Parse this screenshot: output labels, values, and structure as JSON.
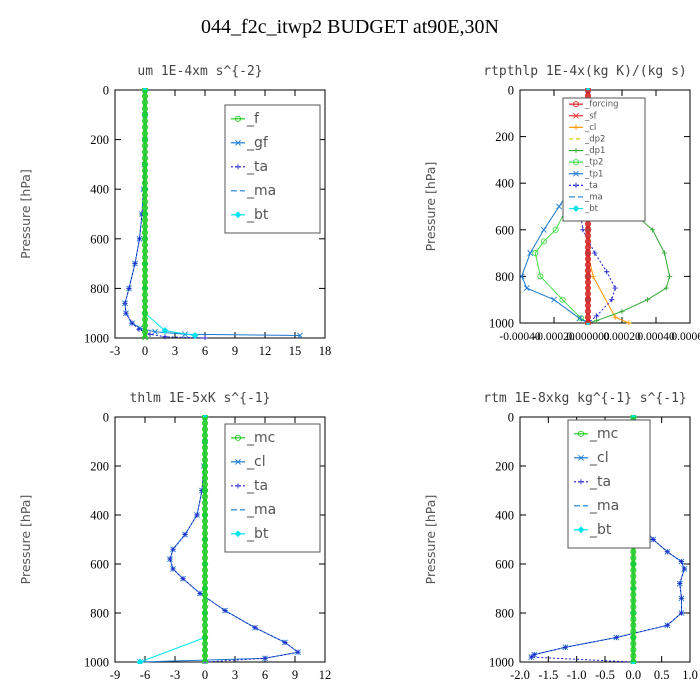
{
  "title": "044_f2c_itwp2  BUDGET at90E,30N",
  "chart_data": [
    {
      "type": "line",
      "title": "um  1E-4xm s^{-2}",
      "ylabel": "Pressure [hPa]",
      "ylim": [
        1000,
        0
      ],
      "yticks": [
        0,
        200,
        400,
        600,
        800,
        1000
      ],
      "xlim": [
        -3,
        18
      ],
      "xticks": [
        -3,
        0,
        3,
        6,
        9,
        12,
        15,
        18
      ],
      "xtick_labels": [
        "-3",
        "0",
        "3",
        "6",
        "9",
        "12",
        "15",
        "18"
      ],
      "legend_position": "top-right",
      "series": [
        {
          "name": "_f",
          "color": "#22cc22",
          "marker": "circle",
          "dash": "",
          "x": [
            0,
            0,
            0,
            0,
            0,
            0,
            0,
            0,
            0,
            0,
            0
          ],
          "y": [
            0,
            100,
            200,
            300,
            400,
            500,
            600,
            700,
            800,
            900,
            1000
          ]
        },
        {
          "name": "_gf",
          "color": "#1a7ad0",
          "marker": "x",
          "dash": "",
          "x": [
            0,
            0,
            0,
            -0.05,
            -0.15,
            -0.3,
            -0.55,
            -1.0,
            -1.6,
            -2.0,
            -1.9,
            -1.3,
            -0.5,
            1.0,
            4.0,
            15.5
          ],
          "y": [
            0,
            100,
            200,
            300,
            400,
            500,
            600,
            700,
            800,
            860,
            900,
            940,
            960,
            975,
            985,
            990
          ]
        },
        {
          "name": "_ta",
          "color": "#2222cc",
          "marker": "plus",
          "dash": "2,2",
          "x": [
            0,
            0,
            0,
            -0.05,
            -0.15,
            -0.3,
            -0.55,
            -1.0,
            -1.6,
            -2.0,
            -1.9,
            -1.3,
            -0.6,
            0.5,
            2.0,
            6.0
          ],
          "y": [
            0,
            100,
            200,
            300,
            400,
            500,
            600,
            700,
            800,
            860,
            900,
            940,
            965,
            985,
            995,
            1000
          ]
        },
        {
          "name": "_ma",
          "color": "#1a7ad0",
          "marker": "",
          "dash": "6,3",
          "x": [
            0,
            0,
            0,
            0,
            0,
            0,
            0,
            0,
            0,
            0,
            0
          ],
          "y": [
            0,
            100,
            200,
            300,
            400,
            500,
            600,
            700,
            800,
            900,
            1000
          ]
        },
        {
          "name": "_bt",
          "color": "#00e5ee",
          "marker": "diamond",
          "dash": "",
          "x": [
            0,
            0,
            0,
            0,
            0,
            0,
            0,
            0,
            0,
            0,
            2.0,
            5.0
          ],
          "y": [
            0,
            100,
            200,
            300,
            400,
            500,
            600,
            700,
            800,
            900,
            970,
            990
          ]
        }
      ]
    },
    {
      "type": "line",
      "title": "rtpthlp  1E-4x(kg K)/(kg s)",
      "ylabel": "Pressure [hPa]",
      "ylim": [
        1000,
        0
      ],
      "yticks": [
        0,
        200,
        400,
        600,
        800,
        1000
      ],
      "xlim": [
        -0.0004,
        0.0006
      ],
      "xticks": [
        -0.0004,
        -0.0002,
        0,
        0.0002,
        0.0004,
        0.0006
      ],
      "xtick_labels": [
        "-0.00040",
        "-0.00020",
        "0.000000",
        "0.00020",
        "0.00040",
        "0.00060"
      ],
      "legend_position": "top-right",
      "series": [
        {
          "name": "_forcing",
          "color": "#dd2222",
          "marker": "circle",
          "dash": "",
          "x": [
            0,
            0,
            0,
            0,
            0,
            0,
            0,
            0,
            0,
            0,
            0
          ],
          "y": [
            0,
            100,
            200,
            300,
            400,
            500,
            600,
            700,
            800,
            900,
            1000
          ]
        },
        {
          "name": "_sf",
          "color": "#ee3333",
          "marker": "x",
          "dash": "",
          "x": [
            0,
            0,
            0,
            0,
            0,
            0,
            0,
            0,
            0,
            0,
            0
          ],
          "y": [
            0,
            100,
            200,
            300,
            400,
            500,
            600,
            700,
            800,
            900,
            1000
          ]
        },
        {
          "name": "_cl",
          "color": "#ff9900",
          "marker": "plus",
          "dash": "",
          "x": [
            0,
            0,
            0,
            0,
            0,
            0,
            0,
            0,
            3e-05,
            0.00016,
            0.00024
          ],
          "y": [
            0,
            100,
            200,
            300,
            400,
            500,
            600,
            700,
            800,
            975,
            1000
          ]
        },
        {
          "name": "_dp2",
          "color": "#cccc00",
          "marker": "",
          "dash": "4,3",
          "x": [
            0,
            0,
            0,
            0,
            0,
            0,
            0,
            0,
            0,
            0,
            0
          ],
          "y": [
            0,
            100,
            200,
            300,
            400,
            500,
            600,
            700,
            800,
            900,
            1000
          ]
        },
        {
          "name": "_dp1",
          "color": "#33aa33",
          "marker": "plus",
          "dash": "",
          "x": [
            0,
            0,
            0,
            1e-05,
            4e-05,
            8e-05,
            0.00013,
            0.0002,
            0.0003,
            0.00038,
            0.00045,
            0.00048,
            0.00046,
            0.00035,
            0.0002,
            5e-05,
            0
          ],
          "y": [
            0,
            100,
            200,
            300,
            350,
            400,
            450,
            500,
            550,
            600,
            700,
            800,
            850,
            900,
            950,
            990,
            1000
          ]
        },
        {
          "name": "_tp2",
          "color": "#44dd44",
          "marker": "circle",
          "dash": "",
          "x": [
            0,
            0,
            0,
            -2e-05,
            -6e-05,
            -0.00012,
            -0.00019,
            -0.00026,
            -0.00031,
            -0.00028,
            -0.00015,
            -4e-05,
            0
          ],
          "y": [
            0,
            100,
            200,
            300,
            400,
            500,
            600,
            650,
            700,
            800,
            900,
            980,
            1000
          ]
        },
        {
          "name": "_tp1",
          "color": "#1a7ad0",
          "marker": "x",
          "dash": "",
          "x": [
            0,
            0,
            0,
            -2e-05,
            -8e-05,
            -0.00017,
            -0.00026,
            -0.00034,
            -0.00039,
            -0.00036,
            -0.0002,
            -5e-05,
            0
          ],
          "y": [
            0,
            100,
            200,
            300,
            400,
            500,
            600,
            700,
            800,
            850,
            900,
            980,
            1000
          ]
        },
        {
          "name": "_ta",
          "color": "#2222cc",
          "marker": "plus",
          "dash": "2,2",
          "x": [
            0,
            0,
            0,
            -2e-05,
            -4e-05,
            -5e-05,
            -3e-05,
            4e-05,
            0.00011,
            0.00016,
            0.00014,
            5e-05,
            0
          ],
          "y": [
            0,
            100,
            200,
            300,
            400,
            500,
            600,
            700,
            780,
            850,
            900,
            970,
            1000
          ]
        },
        {
          "name": "_ma",
          "color": "#1a7ad0",
          "marker": "",
          "dash": "6,3",
          "x": [
            0,
            0,
            0,
            0,
            0,
            0,
            0,
            0,
            0,
            0,
            0
          ],
          "y": [
            0,
            100,
            200,
            300,
            400,
            500,
            600,
            700,
            800,
            900,
            1000
          ]
        },
        {
          "name": "_bt",
          "color": "#00e5ee",
          "marker": "diamond",
          "dash": "",
          "x": [
            0,
            0,
            0,
            0,
            0,
            0,
            0,
            0,
            0,
            0,
            0
          ],
          "y": [
            0,
            100,
            200,
            300,
            400,
            500,
            600,
            700,
            800,
            900,
            1000
          ]
        }
      ]
    },
    {
      "type": "line",
      "title": "thlm  1E-5xK s^{-1}",
      "ylabel": "Pressure [hPa]",
      "ylim": [
        1000,
        0
      ],
      "yticks": [
        0,
        200,
        400,
        600,
        800,
        1000
      ],
      "xlim": [
        -9,
        12
      ],
      "xticks": [
        -9,
        -6,
        -3,
        0,
        3,
        6,
        9,
        12
      ],
      "xtick_labels": [
        "-9",
        "-6",
        "-3",
        "0",
        "3",
        "6",
        "9",
        "12"
      ],
      "legend_position": "top-right",
      "series": [
        {
          "name": "_mc",
          "color": "#22cc22",
          "marker": "circle",
          "dash": "",
          "x": [
            0,
            0,
            0,
            0,
            0,
            0,
            0,
            0,
            0,
            0,
            0
          ],
          "y": [
            0,
            100,
            200,
            300,
            400,
            500,
            600,
            700,
            800,
            900,
            1000
          ]
        },
        {
          "name": "_cl",
          "color": "#1a7ad0",
          "marker": "x",
          "dash": "",
          "x": [
            0,
            0,
            -0.1,
            -0.3,
            -0.8,
            -2.0,
            -3.2,
            -3.5,
            -3.2,
            -2.2,
            -0.5,
            2.0,
            5.0,
            8.0,
            9.3,
            6.0,
            -6.5
          ],
          "y": [
            0,
            100,
            200,
            300,
            400,
            480,
            540,
            580,
            620,
            660,
            720,
            790,
            860,
            920,
            960,
            985,
            1000
          ]
        },
        {
          "name": "_ta",
          "color": "#2222cc",
          "marker": "plus",
          "dash": "2,2",
          "x": [
            0,
            0,
            -0.1,
            -0.3,
            -0.8,
            -2.0,
            -3.2,
            -3.5,
            -3.2,
            -2.2,
            -0.5,
            2.0,
            5.0,
            8.0,
            9.3,
            6.0,
            0
          ],
          "y": [
            0,
            100,
            200,
            300,
            400,
            480,
            540,
            580,
            620,
            660,
            720,
            790,
            860,
            920,
            960,
            985,
            1000
          ]
        },
        {
          "name": "_ma",
          "color": "#1a7ad0",
          "marker": "",
          "dash": "6,3",
          "x": [
            0,
            0,
            0,
            0,
            0,
            0,
            0,
            0,
            0,
            0,
            0
          ],
          "y": [
            0,
            100,
            200,
            300,
            400,
            500,
            600,
            700,
            800,
            900,
            1000
          ]
        },
        {
          "name": "_bt",
          "color": "#00e5ee",
          "marker": "diamond",
          "dash": "",
          "x": [
            0,
            0,
            0,
            0,
            0,
            0,
            0,
            0,
            0,
            0,
            -6.5
          ],
          "y": [
            0,
            100,
            200,
            300,
            400,
            500,
            600,
            700,
            800,
            900,
            1000
          ]
        }
      ]
    },
    {
      "type": "line",
      "title": "rtm  1E-8xkg kg^{-1} s^{-1}",
      "ylabel": "Pressure [hPa]",
      "ylim": [
        1000,
        0
      ],
      "yticks": [
        0,
        200,
        400,
        600,
        800,
        1000
      ],
      "xlim": [
        -2.0,
        1.0
      ],
      "xticks": [
        -2.0,
        -1.5,
        -1.0,
        -0.5,
        0.0,
        0.5,
        1.0
      ],
      "xtick_labels": [
        "-2.0",
        "-1.5",
        "-1.0",
        "-0.5",
        "0.0",
        "0.5",
        "1.0"
      ],
      "legend_position": "top-left",
      "series": [
        {
          "name": "_mc",
          "color": "#22cc22",
          "marker": "circle",
          "dash": "",
          "x": [
            0,
            0,
            0,
            0,
            0,
            0,
            0,
            0,
            0,
            0,
            0
          ],
          "y": [
            0,
            100,
            200,
            300,
            400,
            500,
            600,
            700,
            800,
            900,
            1000
          ]
        },
        {
          "name": "_cl",
          "color": "#1a7ad0",
          "marker": "x",
          "dash": "",
          "x": [
            0,
            0.02,
            0.05,
            0.07,
            0.1,
            0.18,
            0.35,
            0.6,
            0.85,
            0.9,
            0.82,
            0.85,
            0.85,
            0.6,
            -0.3,
            -1.2,
            -1.75,
            -1.8
          ],
          "y": [
            0,
            100,
            150,
            250,
            350,
            450,
            500,
            550,
            590,
            620,
            680,
            740,
            800,
            850,
            900,
            940,
            970,
            980
          ]
        },
        {
          "name": "_ta",
          "color": "#2222cc",
          "marker": "plus",
          "dash": "2,2",
          "x": [
            0,
            0.02,
            0.05,
            0.07,
            0.1,
            0.18,
            0.35,
            0.6,
            0.85,
            0.9,
            0.82,
            0.85,
            0.85,
            0.6,
            -0.3,
            -1.2,
            -1.75,
            -1.8,
            0
          ],
          "y": [
            0,
            100,
            150,
            250,
            350,
            450,
            500,
            550,
            590,
            620,
            680,
            740,
            800,
            850,
            900,
            940,
            970,
            980,
            1000
          ]
        },
        {
          "name": "_ma",
          "color": "#1a7ad0",
          "marker": "",
          "dash": "6,3",
          "x": [
            0,
            0,
            0,
            0,
            0,
            0,
            0,
            0,
            0,
            0,
            0
          ],
          "y": [
            0,
            100,
            200,
            300,
            400,
            500,
            600,
            700,
            800,
            900,
            1000
          ]
        },
        {
          "name": "_bt",
          "color": "#00e5ee",
          "marker": "diamond",
          "dash": "",
          "x": [
            0,
            0,
            0,
            0,
            0,
            0,
            0,
            0,
            0,
            0,
            0
          ],
          "y": [
            0,
            100,
            200,
            300,
            400,
            500,
            600,
            700,
            800,
            900,
            1000
          ]
        }
      ]
    }
  ]
}
